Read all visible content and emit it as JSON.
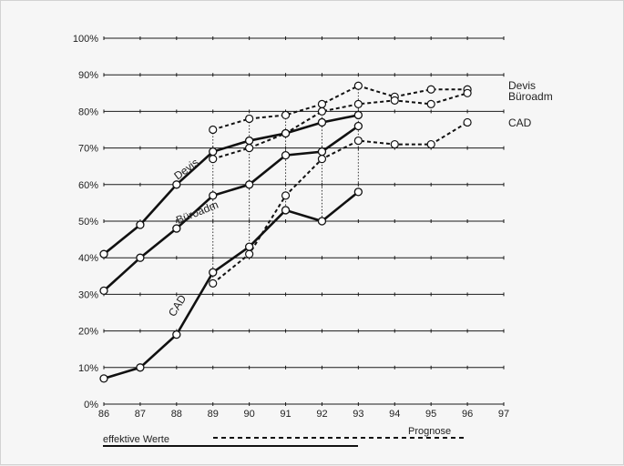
{
  "chart_data": {
    "type": "line",
    "x": [
      86,
      87,
      88,
      89,
      90,
      91,
      92,
      93,
      94,
      95,
      96
    ],
    "x_ticks": [
      "86",
      "87",
      "88",
      "89",
      "90",
      "91",
      "92",
      "93",
      "94",
      "95",
      "96",
      "97"
    ],
    "y_ticks": [
      "0%",
      "10%",
      "20%",
      "30%",
      "40%",
      "50%",
      "60%",
      "70%",
      "80%",
      "90%",
      "100%"
    ],
    "ylim": [
      0,
      100
    ],
    "xlim": [
      86,
      97
    ],
    "grid": true,
    "series": [
      {
        "name": "Devis",
        "inline_label": "Devis",
        "right_label": "Devis",
        "effective": [
          [
            86,
            41
          ],
          [
            87,
            49
          ],
          [
            88,
            60
          ],
          [
            89,
            69
          ],
          [
            90,
            72
          ],
          [
            91,
            74
          ],
          [
            92,
            77
          ],
          [
            93,
            79
          ]
        ],
        "forecast": [
          [
            89,
            75
          ],
          [
            90,
            78
          ],
          [
            91,
            79
          ],
          [
            92,
            82
          ],
          [
            93,
            87
          ],
          [
            94,
            84
          ],
          [
            95,
            86
          ],
          [
            96,
            86
          ]
        ]
      },
      {
        "name": "Büroadm",
        "inline_label": "Büroadm",
        "right_label": "Büroadm",
        "effective": [
          [
            86,
            31
          ],
          [
            87,
            40
          ],
          [
            88,
            48
          ],
          [
            89,
            57
          ],
          [
            90,
            60
          ],
          [
            91,
            68
          ],
          [
            92,
            69
          ],
          [
            93,
            76
          ]
        ],
        "forecast": [
          [
            89,
            67
          ],
          [
            90,
            70
          ],
          [
            91,
            74
          ],
          [
            92,
            80
          ],
          [
            93,
            82
          ],
          [
            94,
            83
          ],
          [
            95,
            82
          ],
          [
            96,
            85
          ]
        ]
      },
      {
        "name": "CAD",
        "inline_label": "CAD",
        "right_label": "CAD",
        "effective": [
          [
            86,
            7
          ],
          [
            87,
            10
          ],
          [
            88,
            19
          ],
          [
            89,
            36
          ],
          [
            90,
            43
          ],
          [
            91,
            53
          ],
          [
            92,
            50
          ],
          [
            93,
            58
          ]
        ],
        "forecast": [
          [
            89,
            33
          ],
          [
            90,
            41
          ],
          [
            91,
            57
          ],
          [
            92,
            67
          ],
          [
            93,
            72
          ],
          [
            94,
            71
          ],
          [
            95,
            71
          ],
          [
            96,
            77
          ]
        ]
      }
    ],
    "legend": {
      "effective": "effektive Werte",
      "forecast": "Prognose"
    }
  }
}
